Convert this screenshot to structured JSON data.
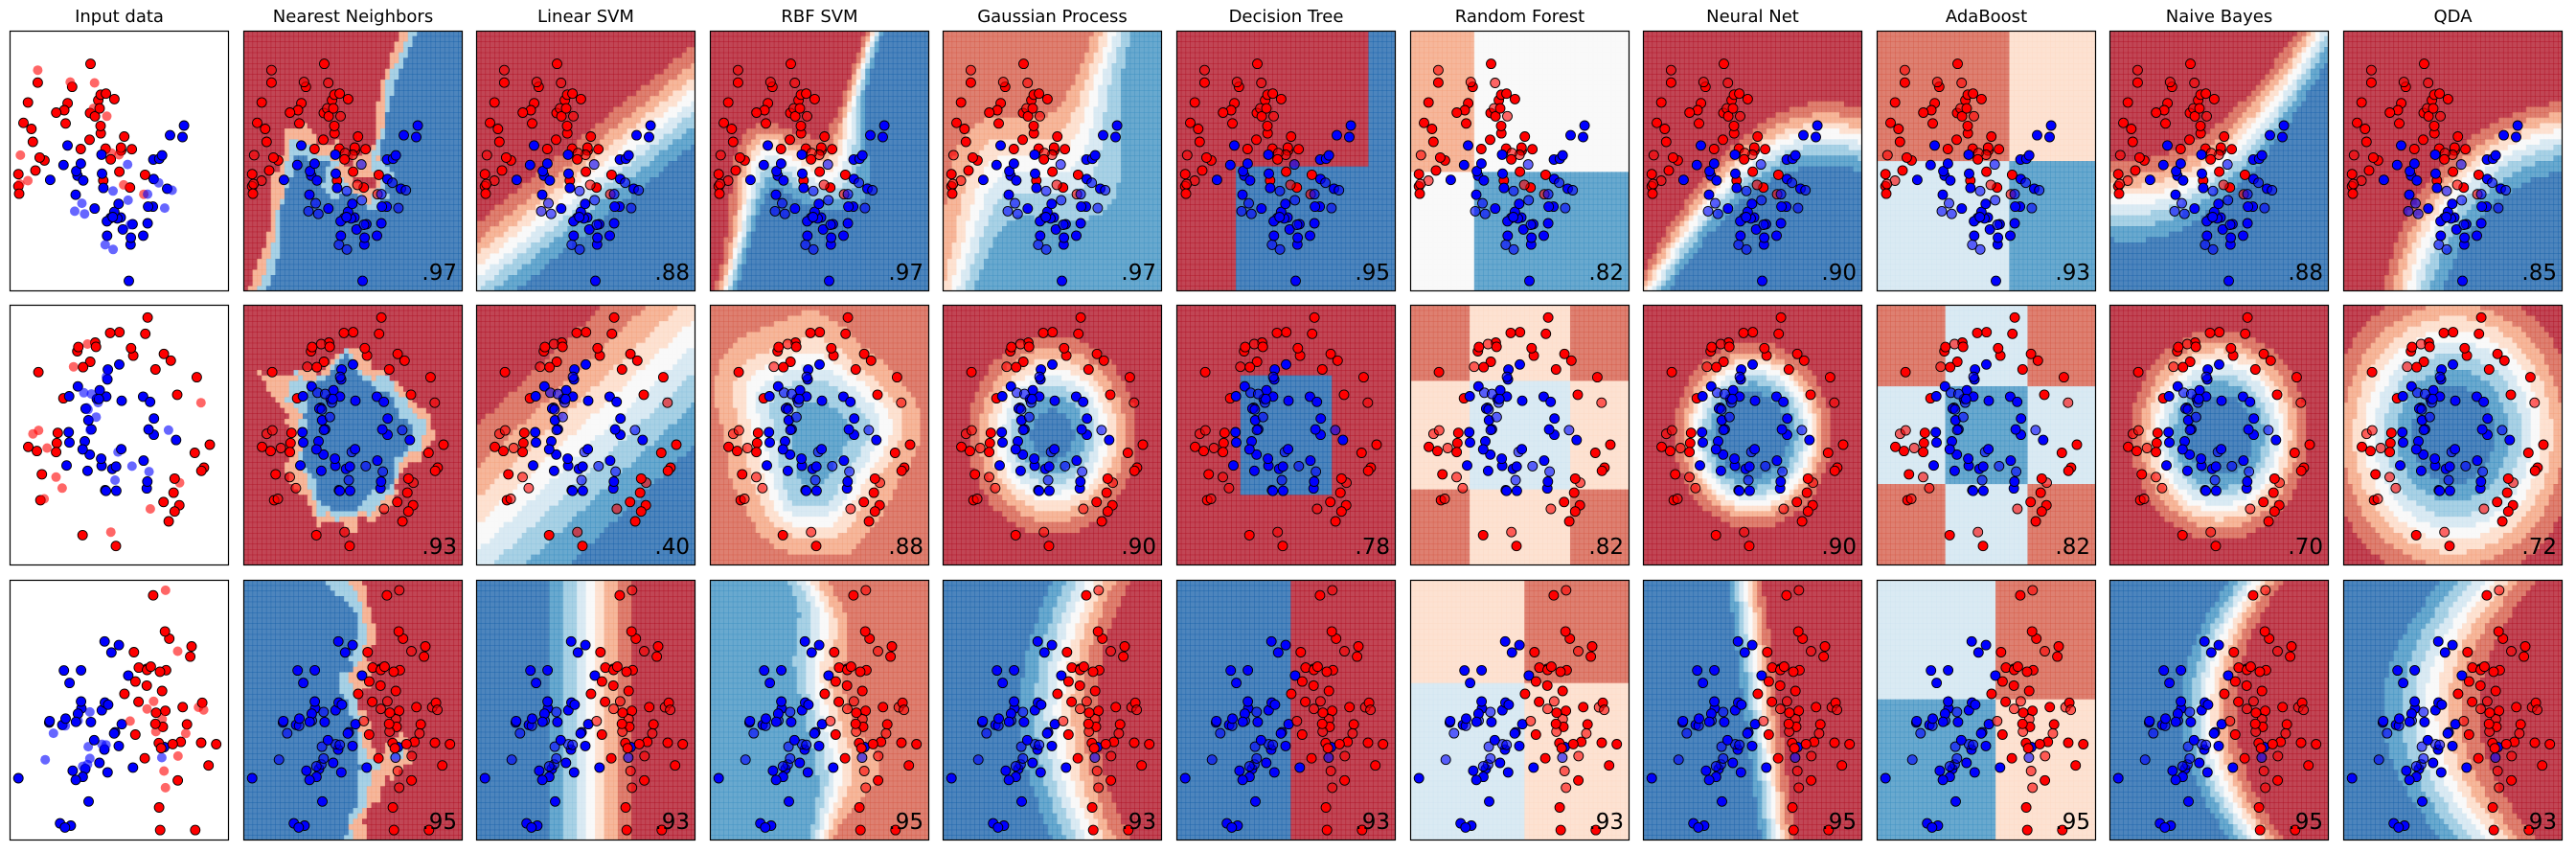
{
  "figure": {
    "columns": [
      "Input data",
      "Nearest Neighbors",
      "Linear SVM",
      "RBF SVM",
      "Gaussian Process",
      "Decision Tree",
      "Random Forest",
      "Neural Net",
      "AdaBoost",
      "Naive Bayes",
      "QDA"
    ],
    "datasets": [
      "moons",
      "circles",
      "linearly_separable"
    ],
    "colors": {
      "class0": "#ff0000",
      "class1": "#0000ff",
      "edge": "#000000",
      "rdbu": [
        "#67001f",
        "#b2182b",
        "#d6604d",
        "#f4a582",
        "#fddbc7",
        "#f7f7f7",
        "#d1e5f0",
        "#92c5de",
        "#4393c3",
        "#2166ac",
        "#053061"
      ]
    }
  },
  "chart_data": [
    {
      "type": "scatter",
      "title": "Input data",
      "dataset": "moons",
      "score": ""
    },
    {
      "type": "heatmap",
      "title": "Nearest Neighbors",
      "dataset": "moons",
      "score": ".97"
    },
    {
      "type": "heatmap",
      "title": "Linear SVM",
      "dataset": "moons",
      "score": ".88"
    },
    {
      "type": "heatmap",
      "title": "RBF SVM",
      "dataset": "moons",
      "score": ".97"
    },
    {
      "type": "heatmap",
      "title": "Gaussian Process",
      "dataset": "moons",
      "score": ".97"
    },
    {
      "type": "heatmap",
      "title": "Decision Tree",
      "dataset": "moons",
      "score": ".95"
    },
    {
      "type": "heatmap",
      "title": "Random Forest",
      "dataset": "moons",
      "score": ".82"
    },
    {
      "type": "heatmap",
      "title": "Neural Net",
      "dataset": "moons",
      "score": ".90"
    },
    {
      "type": "heatmap",
      "title": "AdaBoost",
      "dataset": "moons",
      "score": ".93"
    },
    {
      "type": "heatmap",
      "title": "Naive Bayes",
      "dataset": "moons",
      "score": ".88"
    },
    {
      "type": "heatmap",
      "title": "QDA",
      "dataset": "moons",
      "score": ".85"
    },
    {
      "type": "scatter",
      "title": "",
      "dataset": "circles",
      "score": ""
    },
    {
      "type": "heatmap",
      "title": "",
      "dataset": "circles",
      "score": ".93"
    },
    {
      "type": "heatmap",
      "title": "",
      "dataset": "circles",
      "score": ".40"
    },
    {
      "type": "heatmap",
      "title": "",
      "dataset": "circles",
      "score": ".88"
    },
    {
      "type": "heatmap",
      "title": "",
      "dataset": "circles",
      "score": ".90"
    },
    {
      "type": "heatmap",
      "title": "",
      "dataset": "circles",
      "score": ".78"
    },
    {
      "type": "heatmap",
      "title": "",
      "dataset": "circles",
      "score": ".82"
    },
    {
      "type": "heatmap",
      "title": "",
      "dataset": "circles",
      "score": ".90"
    },
    {
      "type": "heatmap",
      "title": "",
      "dataset": "circles",
      "score": ".82"
    },
    {
      "type": "heatmap",
      "title": "",
      "dataset": "circles",
      "score": ".70"
    },
    {
      "type": "heatmap",
      "title": "",
      "dataset": "circles",
      "score": ".72"
    },
    {
      "type": "scatter",
      "title": "",
      "dataset": "linearly_separable",
      "score": ""
    },
    {
      "type": "heatmap",
      "title": "",
      "dataset": "linearly_separable",
      "score": ".95"
    },
    {
      "type": "heatmap",
      "title": "",
      "dataset": "linearly_separable",
      "score": ".93"
    },
    {
      "type": "heatmap",
      "title": "",
      "dataset": "linearly_separable",
      "score": ".95"
    },
    {
      "type": "heatmap",
      "title": "",
      "dataset": "linearly_separable",
      "score": ".93"
    },
    {
      "type": "heatmap",
      "title": "",
      "dataset": "linearly_separable",
      "score": ".93"
    },
    {
      "type": "heatmap",
      "title": "",
      "dataset": "linearly_separable",
      "score": ".93"
    },
    {
      "type": "heatmap",
      "title": "",
      "dataset": "linearly_separable",
      "score": ".95"
    },
    {
      "type": "heatmap",
      "title": "",
      "dataset": "linearly_separable",
      "score": ".95"
    },
    {
      "type": "heatmap",
      "title": "",
      "dataset": "linearly_separable",
      "score": ".95"
    },
    {
      "type": "heatmap",
      "title": "",
      "dataset": "linearly_separable",
      "score": ".93"
    }
  ]
}
